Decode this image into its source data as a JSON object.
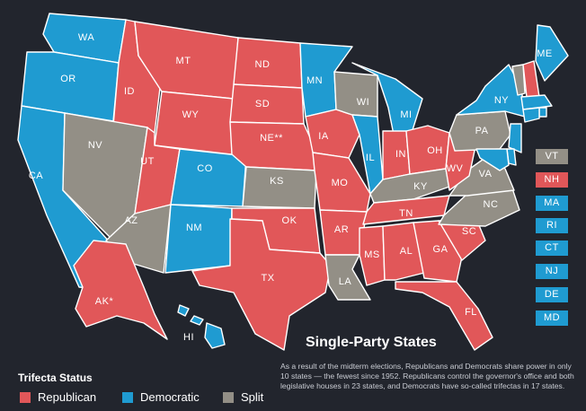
{
  "colors": {
    "republican": "#e15759",
    "democratic": "#1f9bd1",
    "split": "#938f86"
  },
  "title": "Single-Party States",
  "description": "As a result of the midterm elections, Republicans and Democrats share power in only 10 states — the fewest since 1952. Republicans control the governor's office and both legislative houses in 23 states, and Democrats have so-called trifectas in 17 states.",
  "legend": {
    "title": "Trifecta Status",
    "items": [
      {
        "label": "Republican",
        "party": "republican"
      },
      {
        "label": "Democratic",
        "party": "democratic"
      },
      {
        "label": "Split",
        "party": "split"
      }
    ]
  },
  "states": [
    {
      "code": "WA",
      "label": "WA",
      "party": "democratic"
    },
    {
      "code": "OR",
      "label": "OR",
      "party": "democratic"
    },
    {
      "code": "CA",
      "label": "CA",
      "party": "democratic"
    },
    {
      "code": "ID",
      "label": "ID",
      "party": "republican"
    },
    {
      "code": "NV",
      "label": "NV",
      "party": "split"
    },
    {
      "code": "MT",
      "label": "MT",
      "party": "republican"
    },
    {
      "code": "WY",
      "label": "WY",
      "party": "republican"
    },
    {
      "code": "UT",
      "label": "UT",
      "party": "republican"
    },
    {
      "code": "AZ",
      "label": "AZ",
      "party": "split"
    },
    {
      "code": "CO",
      "label": "CO",
      "party": "democratic"
    },
    {
      "code": "NM",
      "label": "NM",
      "party": "democratic"
    },
    {
      "code": "ND",
      "label": "ND",
      "party": "republican"
    },
    {
      "code": "SD",
      "label": "SD",
      "party": "republican"
    },
    {
      "code": "NE",
      "label": "NE**",
      "party": "republican"
    },
    {
      "code": "KS",
      "label": "KS",
      "party": "split"
    },
    {
      "code": "OK",
      "label": "OK",
      "party": "republican"
    },
    {
      "code": "TX",
      "label": "TX",
      "party": "republican"
    },
    {
      "code": "MN",
      "label": "MN",
      "party": "democratic"
    },
    {
      "code": "IA",
      "label": "IA",
      "party": "republican"
    },
    {
      "code": "MO",
      "label": "MO",
      "party": "republican"
    },
    {
      "code": "AR",
      "label": "AR",
      "party": "republican"
    },
    {
      "code": "LA",
      "label": "LA",
      "party": "split"
    },
    {
      "code": "WI",
      "label": "WI",
      "party": "split"
    },
    {
      "code": "IL",
      "label": "IL",
      "party": "democratic"
    },
    {
      "code": "MI",
      "label": "MI",
      "party": "democratic"
    },
    {
      "code": "IN",
      "label": "IN",
      "party": "republican"
    },
    {
      "code": "OH",
      "label": "OH",
      "party": "republican"
    },
    {
      "code": "KY",
      "label": "KY",
      "party": "split"
    },
    {
      "code": "TN",
      "label": "TN",
      "party": "republican"
    },
    {
      "code": "MS",
      "label": "MS",
      "party": "republican"
    },
    {
      "code": "AL",
      "label": "AL",
      "party": "republican"
    },
    {
      "code": "GA",
      "label": "GA",
      "party": "republican"
    },
    {
      "code": "FL",
      "label": "FL",
      "party": "republican"
    },
    {
      "code": "SC",
      "label": "SC",
      "party": "republican"
    },
    {
      "code": "NC",
      "label": "NC",
      "party": "split"
    },
    {
      "code": "VA",
      "label": "VA",
      "party": "split"
    },
    {
      "code": "WV",
      "label": "WV",
      "party": "republican"
    },
    {
      "code": "PA",
      "label": "PA",
      "party": "split"
    },
    {
      "code": "NY",
      "label": "NY",
      "party": "democratic"
    },
    {
      "code": "ME",
      "label": "ME",
      "party": "democratic"
    },
    {
      "code": "AK",
      "label": "AK*",
      "party": "republican"
    },
    {
      "code": "HI",
      "label": "HI",
      "party": "democratic"
    },
    {
      "code": "VT",
      "label": "VT",
      "party": "split"
    },
    {
      "code": "NH",
      "label": "NH",
      "party": "republican"
    },
    {
      "code": "MA",
      "label": "MA",
      "party": "democratic"
    },
    {
      "code": "RI",
      "label": "RI",
      "party": "democratic"
    },
    {
      "code": "CT",
      "label": "CT",
      "party": "democratic"
    },
    {
      "code": "NJ",
      "label": "NJ",
      "party": "democratic"
    },
    {
      "code": "DE",
      "label": "DE",
      "party": "democratic"
    },
    {
      "code": "MD",
      "label": "MD",
      "party": "democratic"
    }
  ]
}
